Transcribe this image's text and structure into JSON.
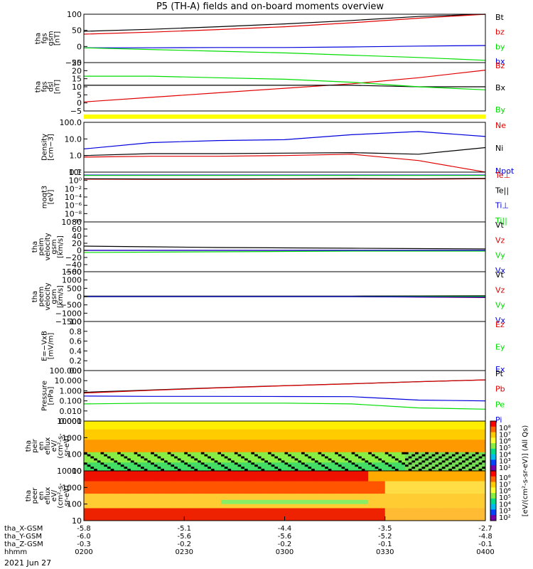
{
  "title": "P5 (TH-A) fields and on-board moments overview",
  "date_label": "2021 Jun 27",
  "colors": {
    "black": "#000000",
    "red": "#e00000",
    "green": "#00dd00",
    "blue": "#0000dd",
    "yellow": "#ffff00",
    "bg": "#ffffff"
  },
  "time_axis": {
    "rows": [
      {
        "label": "tha_X-GSM",
        "values": [
          "-5.8",
          "-5.1",
          "-4.4",
          "-3.5",
          "-2.7"
        ]
      },
      {
        "label": "tha_Y-GSM",
        "values": [
          "-6.0",
          "-5.6",
          "-5.6",
          "-5.2",
          "-4.8"
        ]
      },
      {
        "label": "tha_Z-GSM",
        "values": [
          "-0.3",
          "-0.2",
          "-0.2",
          "-0.1",
          "-0.1"
        ]
      },
      {
        "label": "hhmm",
        "values": [
          "0200",
          "0230",
          "0300",
          "0330",
          "0400"
        ]
      }
    ]
  },
  "chart_data": [
    {
      "type": "line",
      "id": "fgs",
      "ylabel": [
        "tha",
        "fgs",
        "gsm",
        "[nT]"
      ],
      "yticks": [
        "100",
        "50",
        "0",
        "−50"
      ],
      "ylim": [
        -70,
        100
      ],
      "legend": [
        "Bt",
        "bz",
        "by",
        "bx"
      ],
      "series": [
        {
          "name": "Bt",
          "color": "black",
          "values": [
            40,
            47,
            56,
            66,
            78,
            92,
            104
          ]
        },
        {
          "name": "bz",
          "color": "red",
          "values": [
            30,
            37,
            46,
            56,
            70,
            86,
            104
          ]
        },
        {
          "name": "by",
          "color": "blue",
          "values": [
            -18,
            -18,
            -17,
            -17,
            -15,
            -12,
            -10
          ]
        },
        {
          "name": "bx",
          "color": "green",
          "values": [
            -18,
            -24,
            -30,
            -36,
            -44,
            -52,
            -62
          ]
        }
      ]
    },
    {
      "type": "line",
      "id": "fgs_dsl",
      "ylabel": [
        "tha",
        "fgs",
        "dsl",
        "[nT]"
      ],
      "yticks": [
        "25",
        "20",
        "15",
        "10",
        "5",
        "0",
        "−5"
      ],
      "ylim": [
        -7,
        25
      ],
      "legend": [
        "Bz",
        "Bx",
        "By"
      ],
      "series": [
        {
          "name": "Bz",
          "color": "red",
          "values": [
            -1,
            2,
            5,
            8,
            11,
            15,
            20
          ]
        },
        {
          "name": "Bx",
          "color": "black",
          "values": [
            10,
            10,
            10,
            10,
            10,
            9,
            9
          ]
        },
        {
          "name": "By",
          "color": "green",
          "values": [
            16,
            16,
            15,
            14,
            12,
            9,
            7
          ]
        }
      ]
    },
    {
      "type": "line",
      "id": "density",
      "ylabel": [
        "Density",
        "[cm−3]"
      ],
      "yticks": [
        "100.0",
        "10.0",
        "1.0",
        "0.1"
      ],
      "ylim": [
        0.1,
        100
      ],
      "log": true,
      "legend": [
        "Ne",
        "Ni",
        "Npot"
      ],
      "series": [
        {
          "name": "Ne",
          "color": "red",
          "values": [
            0.8,
            0.9,
            0.9,
            1.0,
            1.2,
            0.5,
            0.1
          ]
        },
        {
          "name": "Ni",
          "color": "black",
          "values": [
            1.0,
            1.3,
            1.3,
            1.4,
            1.5,
            1.2,
            3.0
          ]
        },
        {
          "name": "Npot",
          "color": "blue",
          "values": [
            2.5,
            6.0,
            8.0,
            9.0,
            18.0,
            28.0,
            14.0
          ]
        }
      ]
    },
    {
      "type": "line",
      "id": "temp",
      "ylabel": [
        "moqt3",
        "[eV]"
      ],
      "yticks": [
        "10²",
        "10⁰",
        "10⁻²",
        "10⁻⁴",
        "10⁻⁶",
        "10⁻⁸",
        "10⁻¹⁰"
      ],
      "ylim": [
        -10,
        2
      ],
      "log": true,
      "legend": [
        "Te⊥",
        "Te||",
        "Ti⊥",
        "Ti||"
      ],
      "series": [
        {
          "name": "Te⊥",
          "color": "red",
          "values": [
            0.3,
            0.25,
            0.25,
            0.3,
            0.35,
            0.3,
            0.4
          ]
        },
        {
          "name": "Te||",
          "color": "black",
          "values": [
            0.4,
            0.35,
            0.35,
            0.4,
            0.45,
            0.4,
            0.5
          ]
        },
        {
          "name": "Ti⊥",
          "color": "blue",
          "values": [
            1.3,
            1.3,
            1.3,
            1.3,
            1.3,
            1.3,
            1.3
          ]
        },
        {
          "name": "Ti||",
          "color": "green",
          "values": [
            1.2,
            1.2,
            1.2,
            1.2,
            1.2,
            1.2,
            1.2
          ]
        }
      ]
    },
    {
      "type": "line",
      "id": "peim",
      "ylabel": [
        "tha",
        "peim",
        "velocity",
        "gsm",
        "[km/s]"
      ],
      "yticks": [
        "80",
        "60",
        "40",
        "20",
        "0",
        "−20",
        "−40",
        "−60"
      ],
      "ylim": [
        -60,
        80
      ],
      "legend": [
        "Vt",
        "Vz",
        "Vy",
        "Vx"
      ],
      "series": [
        {
          "name": "Vt",
          "color": "black",
          "values": [
            12,
            10,
            8,
            7,
            6,
            5,
            4
          ]
        },
        {
          "name": "Vz",
          "color": "red",
          "values": [
            0,
            0,
            0,
            0,
            0,
            0,
            0
          ]
        },
        {
          "name": "Vy",
          "color": "green",
          "values": [
            -6,
            -5,
            -4,
            -3,
            -2,
            -2,
            -2
          ]
        },
        {
          "name": "Vx",
          "color": "blue",
          "values": [
            0,
            0,
            0,
            0,
            0,
            0,
            0
          ]
        }
      ]
    },
    {
      "type": "line",
      "id": "peem",
      "ylabel": [
        "tha",
        "peem",
        "velocity",
        "gsm",
        "[km/s]"
      ],
      "yticks": [
        "1500",
        "1000",
        "500",
        "0",
        "−500",
        "−1000",
        "−1500"
      ],
      "ylim": [
        -1500,
        1500
      ],
      "legend": [
        "Vt",
        "Vz",
        "Vy",
        "Vx"
      ],
      "series": [
        {
          "name": "Vt",
          "color": "black",
          "values": [
            30,
            30,
            30,
            30,
            30,
            40,
            50
          ]
        },
        {
          "name": "Vz",
          "color": "red",
          "values": [
            0,
            0,
            0,
            0,
            0,
            -30,
            -60
          ]
        },
        {
          "name": "Vy",
          "color": "green",
          "values": [
            0,
            0,
            0,
            0,
            0,
            0,
            0
          ]
        },
        {
          "name": "Vx",
          "color": "blue",
          "values": [
            0,
            0,
            0,
            0,
            0,
            -20,
            -40
          ]
        }
      ]
    },
    {
      "type": "line",
      "id": "efield",
      "ylabel": [
        "E=−VxB",
        "[mV/m]"
      ],
      "yticks": [
        "1.0",
        "0.8",
        "0.6",
        "0.4",
        "0.2",
        "0.0"
      ],
      "ylim": [
        0,
        1
      ],
      "legend": [
        "Ez",
        "Ey",
        "Ex"
      ],
      "series": []
    },
    {
      "type": "line",
      "id": "pressure",
      "ylabel": [
        "Pressure",
        "[nPa]"
      ],
      "yticks": [
        "100.000",
        "10.000",
        "1.000",
        "0.100",
        "0.010",
        "0.001"
      ],
      "ylim": [
        0.001,
        100
      ],
      "log": true,
      "legend": [
        "Pt",
        "Pb",
        "Pe",
        "Pi"
      ],
      "series": [
        {
          "name": "Pt",
          "color": "black",
          "values": [
            0.7,
            1.2,
            2.0,
            3.2,
            5.0,
            8.0,
            12.0
          ]
        },
        {
          "name": "Pb",
          "color": "red",
          "values": [
            0.6,
            1.1,
            1.9,
            3.1,
            4.9,
            7.9,
            12.0
          ]
        },
        {
          "name": "Pe",
          "color": "green",
          "values": [
            0.05,
            0.06,
            0.06,
            0.06,
            0.05,
            0.02,
            0.015
          ]
        },
        {
          "name": "Pi",
          "color": "blue",
          "values": [
            0.3,
            0.28,
            0.28,
            0.27,
            0.26,
            0.12,
            0.1
          ]
        }
      ]
    },
    {
      "type": "heatmap",
      "id": "peir",
      "ylabel": [
        "tha",
        "peir",
        "en",
        "eflux",
        "eV/",
        "(cm²-s-",
        "sr-eV)"
      ],
      "yticks": [
        "10000",
        "1000",
        "100",
        "10"
      ],
      "colorbar_ticks": [
        "10⁸",
        "10⁷",
        "10⁶",
        "10⁵",
        "10⁴",
        "10³",
        "10²"
      ]
    },
    {
      "type": "heatmap",
      "id": "peer",
      "ylabel": [
        "tha",
        "peer",
        "en",
        "eflux",
        "eV/",
        "(cm²-s-",
        "sr-eV)"
      ],
      "yticks": [
        "10000",
        "1000",
        "100",
        "10"
      ],
      "colorbar_ticks": [
        "10⁸",
        "10⁷",
        "10⁶",
        "10⁵",
        "10⁴",
        "10³",
        "10²"
      ]
    }
  ],
  "colorbar_label": "[eV/(cm²-s-sr-eV)] (All Qs)"
}
